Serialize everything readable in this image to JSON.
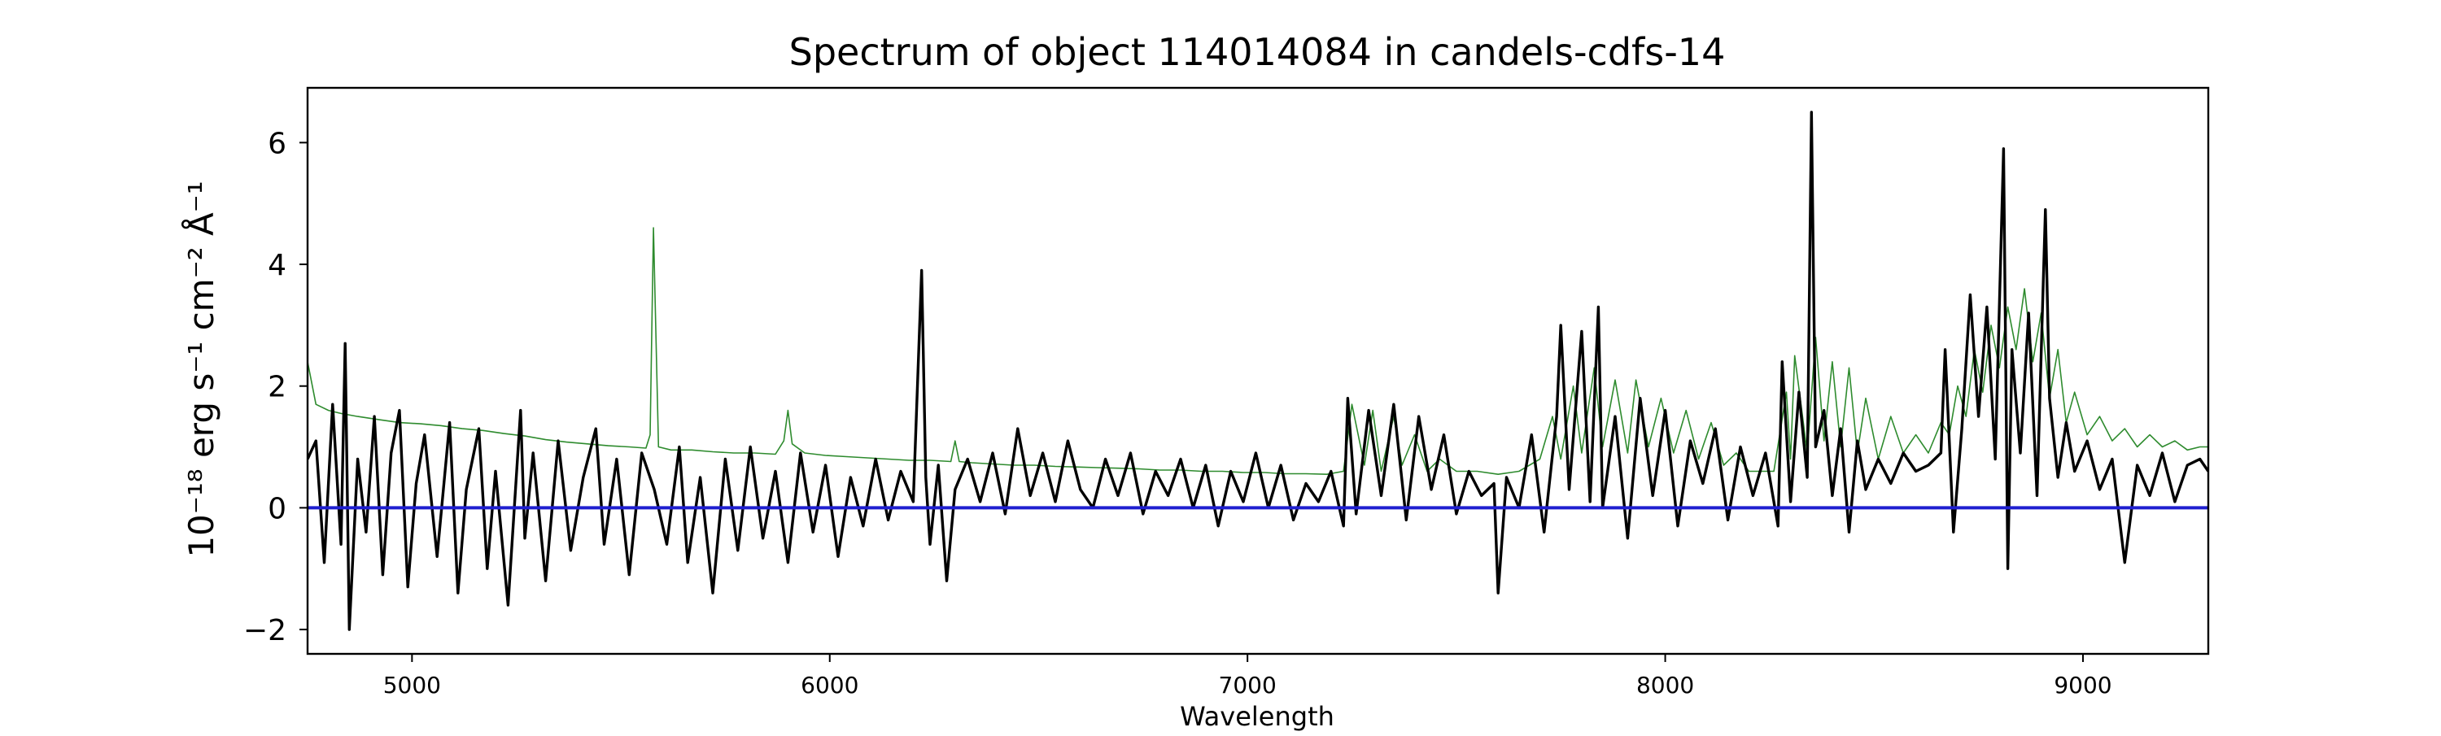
{
  "chart_data": {
    "type": "line",
    "title": "Spectrum of object 114014084 in candels-cdfs-14",
    "xlabel": "Wavelength",
    "ylabel": "10⁻¹⁸ erg s⁻¹ cm⁻² Å⁻¹",
    "xlim": [
      4750,
      9300
    ],
    "ylim": [
      -2.4,
      6.9
    ],
    "x_ticks": [
      5000,
      6000,
      7000,
      8000,
      9000
    ],
    "x_tick_labels": [
      "5000",
      "6000",
      "7000",
      "8000",
      "9000"
    ],
    "y_ticks": [
      -2,
      0,
      2,
      4,
      6
    ],
    "y_tick_labels": [
      "−2",
      "0",
      "2",
      "4",
      "6"
    ],
    "grid": false,
    "legend": "none",
    "series": [
      {
        "role": "flux",
        "color": "#000000",
        "x": [
          4750,
          4770,
          4790,
          4810,
          4830,
          4840,
          4850,
          4870,
          4890,
          4910,
          4930,
          4950,
          4970,
          4990,
          5010,
          5030,
          5060,
          5090,
          5110,
          5130,
          5160,
          5180,
          5200,
          5230,
          5260,
          5270,
          5290,
          5320,
          5350,
          5380,
          5410,
          5440,
          5460,
          5490,
          5520,
          5550,
          5580,
          5610,
          5640,
          5660,
          5690,
          5720,
          5750,
          5780,
          5810,
          5840,
          5870,
          5900,
          5930,
          5960,
          5990,
          6020,
          6050,
          6080,
          6110,
          6140,
          6170,
          6200,
          6220,
          6230,
          6240,
          6260,
          6280,
          6300,
          6330,
          6360,
          6390,
          6420,
          6450,
          6480,
          6510,
          6540,
          6570,
          6600,
          6630,
          6660,
          6690,
          6720,
          6750,
          6780,
          6810,
          6840,
          6870,
          6900,
          6930,
          6960,
          6990,
          7020,
          7050,
          7080,
          7110,
          7140,
          7170,
          7200,
          7230,
          7240,
          7260,
          7290,
          7320,
          7350,
          7380,
          7410,
          7440,
          7470,
          7500,
          7530,
          7560,
          7590,
          7600,
          7620,
          7650,
          7680,
          7710,
          7740,
          7750,
          7770,
          7800,
          7820,
          7840,
          7850,
          7880,
          7910,
          7940,
          7970,
          8000,
          8030,
          8060,
          8090,
          8120,
          8150,
          8180,
          8210,
          8240,
          8270,
          8280,
          8300,
          8320,
          8340,
          8350,
          8360,
          8380,
          8400,
          8420,
          8440,
          8460,
          8480,
          8510,
          8540,
          8570,
          8600,
          8630,
          8660,
          8670,
          8690,
          8710,
          8730,
          8750,
          8770,
          8790,
          8810,
          8820,
          8830,
          8850,
          8870,
          8890,
          8910,
          8920,
          8940,
          8960,
          8980,
          9010,
          9040,
          9070,
          9100,
          9130,
          9160,
          9190,
          9220,
          9250,
          9280,
          9300
        ],
        "y": [
          0.8,
          1.1,
          -0.9,
          1.7,
          -0.6,
          2.7,
          -2.0,
          0.8,
          -0.4,
          1.5,
          -1.1,
          0.9,
          1.6,
          -1.3,
          0.4,
          1.2,
          -0.8,
          1.4,
          -1.4,
          0.3,
          1.3,
          -1.0,
          0.6,
          -1.6,
          1.6,
          -0.5,
          0.9,
          -1.2,
          1.1,
          -0.7,
          0.5,
          1.3,
          -0.6,
          0.8,
          -1.1,
          0.9,
          0.3,
          -0.6,
          1.0,
          -0.9,
          0.5,
          -1.4,
          0.8,
          -0.7,
          1.0,
          -0.5,
          0.6,
          -0.9,
          0.9,
          -0.4,
          0.7,
          -0.8,
          0.5,
          -0.3,
          0.8,
          -0.2,
          0.6,
          0.1,
          3.9,
          0.5,
          -0.6,
          0.7,
          -1.2,
          0.3,
          0.8,
          0.1,
          0.9,
          -0.1,
          1.3,
          0.2,
          0.9,
          0.1,
          1.1,
          0.3,
          0.0,
          0.8,
          0.2,
          0.9,
          -0.1,
          0.6,
          0.2,
          0.8,
          0.0,
          0.7,
          -0.3,
          0.6,
          0.1,
          0.9,
          0.0,
          0.7,
          -0.2,
          0.4,
          0.1,
          0.6,
          -0.3,
          1.8,
          -0.1,
          1.6,
          0.2,
          1.7,
          -0.2,
          1.5,
          0.3,
          1.2,
          -0.1,
          0.6,
          0.2,
          0.4,
          -1.4,
          0.5,
          0.0,
          1.2,
          -0.4,
          1.5,
          3.0,
          0.3,
          2.9,
          0.1,
          3.3,
          0.0,
          1.5,
          -0.5,
          1.8,
          0.2,
          1.6,
          -0.3,
          1.1,
          0.4,
          1.3,
          -0.2,
          1.0,
          0.2,
          0.9,
          -0.3,
          2.4,
          0.1,
          1.9,
          0.5,
          6.5,
          1.0,
          1.6,
          0.2,
          1.3,
          -0.4,
          1.1,
          0.3,
          0.8,
          0.4,
          0.9,
          0.6,
          0.7,
          0.9,
          2.6,
          -0.4,
          1.3,
          3.5,
          1.5,
          3.3,
          0.8,
          5.9,
          -1.0,
          2.6,
          0.9,
          3.2,
          0.2,
          4.9,
          1.8,
          0.5,
          1.4,
          0.6,
          1.1,
          0.3,
          0.8,
          -0.9,
          0.7,
          0.2,
          0.9,
          0.1,
          0.7,
          0.8,
          0.6
        ]
      },
      {
        "role": "noise",
        "color": "#2e8b2e",
        "x": [
          4750,
          4770,
          4800,
          4830,
          4870,
          4920,
          4970,
          5020,
          5070,
          5120,
          5170,
          5220,
          5270,
          5320,
          5370,
          5420,
          5470,
          5520,
          5560,
          5570,
          5578,
          5590,
          5620,
          5670,
          5720,
          5770,
          5820,
          5870,
          5890,
          5900,
          5910,
          5940,
          5990,
          6040,
          6090,
          6140,
          6190,
          6240,
          6290,
          6300,
          6310,
          6340,
          6390,
          6440,
          6490,
          6540,
          6590,
          6640,
          6690,
          6740,
          6790,
          6840,
          6890,
          6940,
          6990,
          7040,
          7090,
          7140,
          7190,
          7230,
          7250,
          7280,
          7300,
          7320,
          7350,
          7370,
          7400,
          7430,
          7460,
          7500,
          7550,
          7600,
          7650,
          7700,
          7730,
          7750,
          7780,
          7800,
          7830,
          7850,
          7880,
          7910,
          7930,
          7960,
          7990,
          8020,
          8050,
          8080,
          8110,
          8140,
          8170,
          8200,
          8230,
          8260,
          8290,
          8300,
          8310,
          8340,
          8360,
          8380,
          8400,
          8420,
          8440,
          8460,
          8480,
          8510,
          8540,
          8570,
          8600,
          8630,
          8660,
          8680,
          8700,
          8720,
          8740,
          8760,
          8780,
          8800,
          8820,
          8840,
          8860,
          8880,
          8900,
          8920,
          8940,
          8960,
          8980,
          9010,
          9040,
          9070,
          9100,
          9130,
          9160,
          9190,
          9220,
          9250,
          9280,
          9300
        ],
        "y": [
          2.4,
          1.7,
          1.6,
          1.55,
          1.5,
          1.45,
          1.4,
          1.38,
          1.35,
          1.3,
          1.27,
          1.22,
          1.18,
          1.12,
          1.08,
          1.05,
          1.02,
          1.0,
          0.98,
          1.2,
          4.6,
          1.0,
          0.95,
          0.95,
          0.92,
          0.9,
          0.9,
          0.88,
          1.1,
          1.6,
          1.05,
          0.9,
          0.86,
          0.84,
          0.82,
          0.8,
          0.78,
          0.78,
          0.76,
          1.1,
          0.76,
          0.74,
          0.72,
          0.7,
          0.7,
          0.68,
          0.67,
          0.66,
          0.65,
          0.64,
          0.62,
          0.62,
          0.6,
          0.6,
          0.58,
          0.58,
          0.56,
          0.56,
          0.55,
          0.6,
          1.7,
          0.7,
          1.6,
          0.6,
          1.5,
          0.7,
          1.2,
          0.6,
          0.8,
          0.6,
          0.6,
          0.55,
          0.6,
          0.8,
          1.5,
          0.8,
          2.0,
          0.9,
          2.3,
          1.0,
          2.1,
          0.9,
          2.1,
          1.0,
          1.8,
          0.9,
          1.6,
          0.8,
          1.4,
          0.7,
          0.9,
          0.6,
          0.6,
          0.6,
          1.9,
          0.8,
          2.5,
          0.9,
          2.8,
          1.1,
          2.4,
          1.0,
          2.3,
          0.9,
          1.8,
          0.8,
          1.5,
          0.9,
          1.2,
          0.9,
          1.4,
          1.2,
          2.0,
          1.5,
          2.6,
          1.9,
          3.0,
          2.3,
          3.3,
          2.6,
          3.6,
          2.4,
          3.2,
          1.8,
          2.6,
          1.4,
          1.9,
          1.2,
          1.5,
          1.1,
          1.3,
          1.0,
          1.2,
          1.0,
          1.1,
          0.95,
          1.0,
          1.0
        ]
      },
      {
        "role": "zero-level",
        "color": "#1f1fd0",
        "x": [
          4750,
          9300
        ],
        "y": [
          0,
          0
        ]
      }
    ]
  }
}
